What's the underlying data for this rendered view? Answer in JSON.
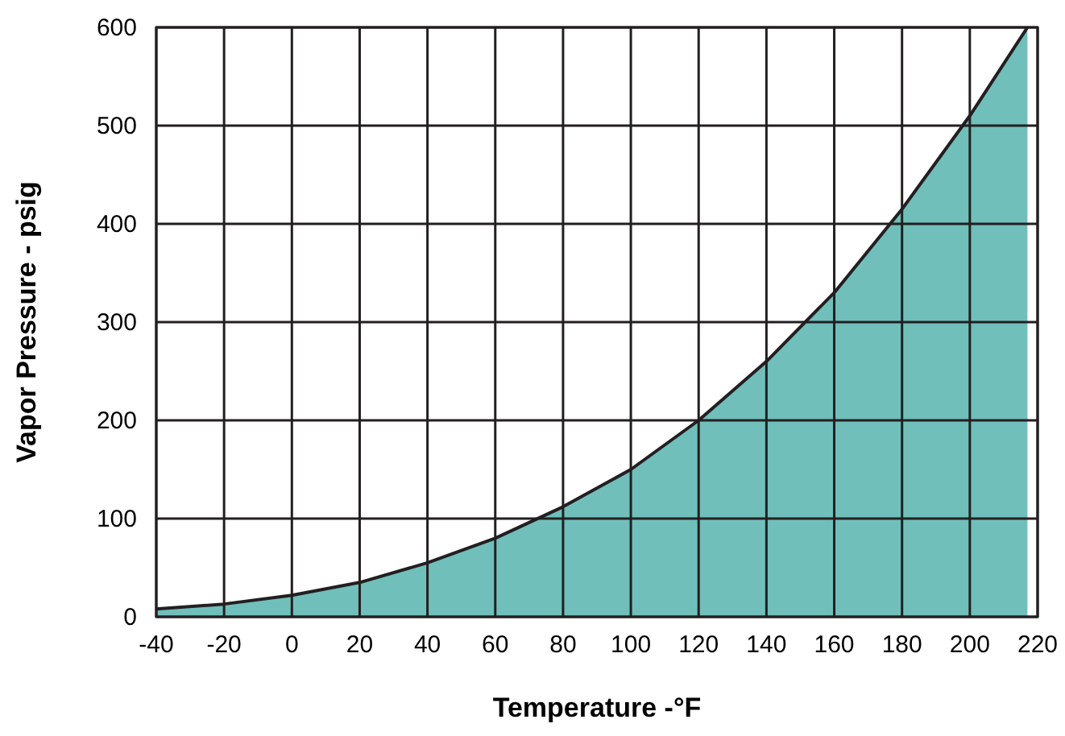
{
  "chart_data": {
    "type": "area",
    "xlabel": "Temperature -°F",
    "ylabel": "Vapor Pressure - psig",
    "x": [
      -40,
      -20,
      0,
      20,
      40,
      60,
      80,
      100,
      120,
      140,
      160,
      180,
      200,
      217
    ],
    "series": [
      {
        "color": "#70bfba",
        "values": [
          8,
          13,
          22,
          35,
          55,
          80,
          112,
          150,
          200,
          260,
          330,
          415,
          510,
          600
        ]
      }
    ],
    "xlim": [
      -40,
      220
    ],
    "xticks": [
      -40,
      -20,
      0,
      20,
      40,
      60,
      80,
      100,
      120,
      140,
      160,
      180,
      200,
      220
    ],
    "ylim": [
      0,
      600
    ],
    "yticks": [
      0,
      100,
      200,
      300,
      400,
      500,
      600
    ],
    "grid": true
  }
}
